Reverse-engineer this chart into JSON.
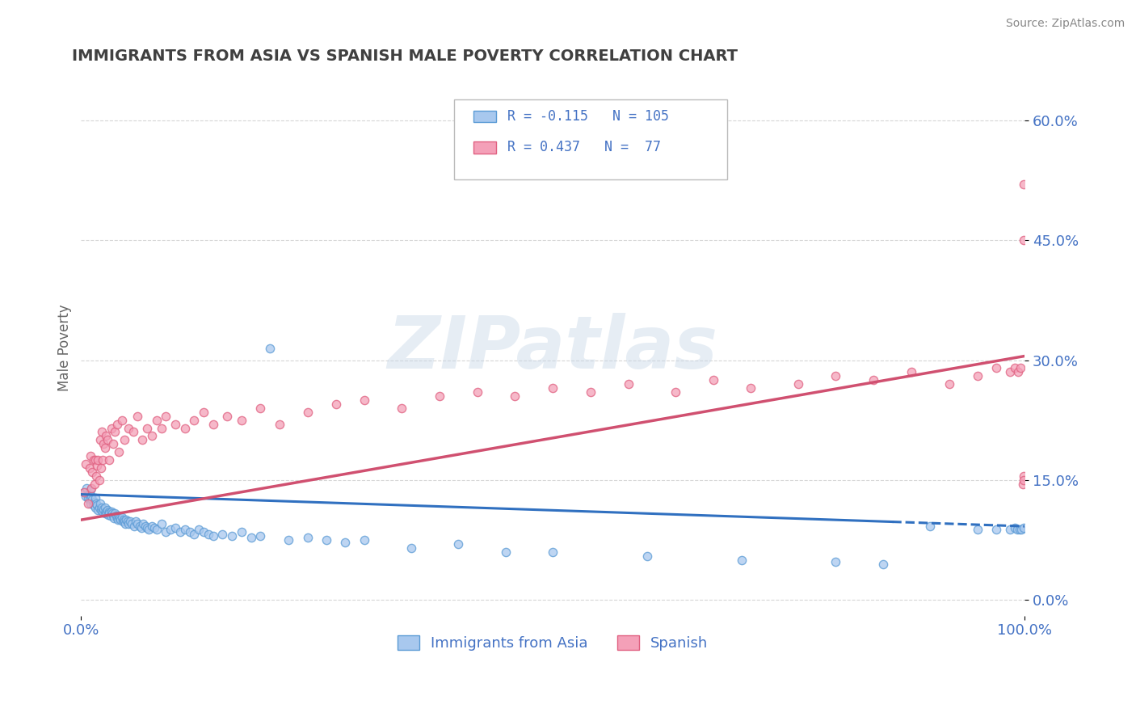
{
  "title": "IMMIGRANTS FROM ASIA VS SPANISH MALE POVERTY CORRELATION CHART",
  "source": "Source: ZipAtlas.com",
  "ylabel": "Male Poverty",
  "xlim": [
    0.0,
    1.0
  ],
  "ylim": [
    -0.02,
    0.65
  ],
  "ytick_vals": [
    0.0,
    0.15,
    0.3,
    0.45,
    0.6
  ],
  "ytick_labels": [
    "0.0%",
    "15.0%",
    "30.0%",
    "45.0%",
    "60.0%"
  ],
  "xtick_vals": [
    0.0,
    1.0
  ],
  "xtick_labels": [
    "0.0%",
    "100.0%"
  ],
  "blue_fill": "#A8C8EE",
  "blue_edge": "#5B9BD5",
  "pink_fill": "#F4A0B8",
  "pink_edge": "#E06080",
  "trend_blue_color": "#3070C0",
  "trend_pink_color": "#D05070",
  "R_blue": -0.115,
  "N_blue": 105,
  "R_pink": 0.437,
  "N_pink": 77,
  "legend_label_blue": "Immigrants from Asia",
  "legend_label_pink": "Spanish",
  "watermark": "ZIPatlas",
  "background_color": "#ffffff",
  "grid_color": "#cccccc",
  "title_color": "#404040",
  "axis_color": "#4472C4",
  "blue_trend_start_y": 0.132,
  "blue_trend_end_y": 0.092,
  "pink_trend_start_y": 0.1,
  "pink_trend_end_y": 0.305,
  "blue_scatter_x": [
    0.003,
    0.005,
    0.006,
    0.007,
    0.008,
    0.009,
    0.01,
    0.01,
    0.011,
    0.012,
    0.013,
    0.014,
    0.015,
    0.015,
    0.016,
    0.017,
    0.018,
    0.019,
    0.02,
    0.021,
    0.022,
    0.023,
    0.024,
    0.025,
    0.025,
    0.026,
    0.027,
    0.028,
    0.029,
    0.03,
    0.03,
    0.031,
    0.032,
    0.033,
    0.034,
    0.035,
    0.036,
    0.037,
    0.038,
    0.039,
    0.04,
    0.041,
    0.042,
    0.043,
    0.044,
    0.045,
    0.046,
    0.047,
    0.048,
    0.049,
    0.05,
    0.052,
    0.054,
    0.056,
    0.058,
    0.06,
    0.062,
    0.064,
    0.066,
    0.068,
    0.07,
    0.072,
    0.075,
    0.078,
    0.08,
    0.085,
    0.09,
    0.095,
    0.1,
    0.105,
    0.11,
    0.115,
    0.12,
    0.125,
    0.13,
    0.135,
    0.14,
    0.15,
    0.16,
    0.17,
    0.18,
    0.19,
    0.2,
    0.22,
    0.24,
    0.26,
    0.28,
    0.3,
    0.35,
    0.4,
    0.45,
    0.5,
    0.6,
    0.7,
    0.8,
    0.85,
    0.9,
    0.95,
    0.97,
    0.985,
    0.99,
    0.992,
    0.995,
    0.997,
    0.999
  ],
  "blue_scatter_y": [
    0.135,
    0.13,
    0.14,
    0.128,
    0.132,
    0.125,
    0.138,
    0.12,
    0.13,
    0.125,
    0.118,
    0.122,
    0.128,
    0.115,
    0.12,
    0.118,
    0.112,
    0.115,
    0.12,
    0.112,
    0.115,
    0.11,
    0.113,
    0.108,
    0.115,
    0.11,
    0.108,
    0.112,
    0.106,
    0.11,
    0.108,
    0.105,
    0.11,
    0.108,
    0.105,
    0.102,
    0.108,
    0.105,
    0.102,
    0.1,
    0.105,
    0.102,
    0.1,
    0.103,
    0.098,
    0.1,
    0.098,
    0.095,
    0.1,
    0.098,
    0.095,
    0.098,
    0.095,
    0.092,
    0.098,
    0.095,
    0.092,
    0.09,
    0.095,
    0.092,
    0.09,
    0.088,
    0.092,
    0.09,
    0.088,
    0.095,
    0.085,
    0.088,
    0.09,
    0.085,
    0.088,
    0.085,
    0.082,
    0.088,
    0.085,
    0.082,
    0.08,
    0.082,
    0.08,
    0.085,
    0.078,
    0.08,
    0.315,
    0.075,
    0.078,
    0.075,
    0.072,
    0.075,
    0.065,
    0.07,
    0.06,
    0.06,
    0.055,
    0.05,
    0.048,
    0.045,
    0.092,
    0.088,
    0.088,
    0.088,
    0.09,
    0.088,
    0.088,
    0.088,
    0.09
  ],
  "pink_scatter_x": [
    0.003,
    0.005,
    0.007,
    0.009,
    0.01,
    0.011,
    0.012,
    0.013,
    0.014,
    0.015,
    0.016,
    0.017,
    0.018,
    0.019,
    0.02,
    0.021,
    0.022,
    0.023,
    0.024,
    0.025,
    0.026,
    0.028,
    0.03,
    0.032,
    0.034,
    0.036,
    0.038,
    0.04,
    0.043,
    0.046,
    0.05,
    0.055,
    0.06,
    0.065,
    0.07,
    0.075,
    0.08,
    0.085,
    0.09,
    0.1,
    0.11,
    0.12,
    0.13,
    0.14,
    0.155,
    0.17,
    0.19,
    0.21,
    0.24,
    0.27,
    0.3,
    0.34,
    0.38,
    0.42,
    0.46,
    0.5,
    0.54,
    0.58,
    0.63,
    0.67,
    0.71,
    0.76,
    0.8,
    0.84,
    0.88,
    0.92,
    0.95,
    0.97,
    0.985,
    0.99,
    0.993,
    0.996,
    0.998,
    0.999,
    0.999,
    0.999,
    0.999
  ],
  "pink_scatter_y": [
    0.135,
    0.17,
    0.12,
    0.165,
    0.18,
    0.14,
    0.16,
    0.175,
    0.145,
    0.175,
    0.155,
    0.168,
    0.175,
    0.15,
    0.2,
    0.165,
    0.21,
    0.175,
    0.195,
    0.19,
    0.205,
    0.2,
    0.175,
    0.215,
    0.195,
    0.21,
    0.22,
    0.185,
    0.225,
    0.2,
    0.215,
    0.21,
    0.23,
    0.2,
    0.215,
    0.205,
    0.225,
    0.215,
    0.23,
    0.22,
    0.215,
    0.225,
    0.235,
    0.22,
    0.23,
    0.225,
    0.24,
    0.22,
    0.235,
    0.245,
    0.25,
    0.24,
    0.255,
    0.26,
    0.255,
    0.265,
    0.26,
    0.27,
    0.26,
    0.275,
    0.265,
    0.27,
    0.28,
    0.275,
    0.285,
    0.27,
    0.28,
    0.29,
    0.285,
    0.29,
    0.285,
    0.29,
    0.145,
    0.155,
    0.15,
    0.52,
    0.45
  ]
}
